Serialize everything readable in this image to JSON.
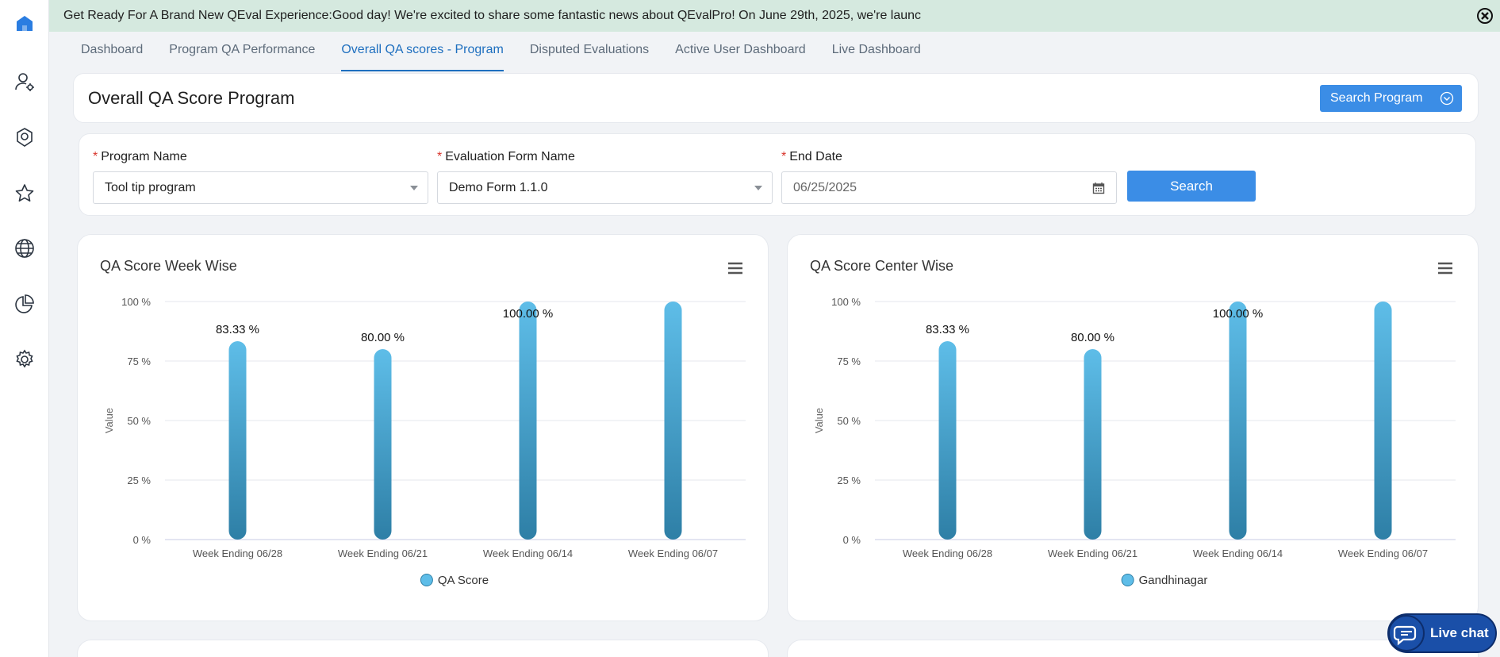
{
  "colors": {
    "accent": "#3b8de6",
    "tab_active": "#1e6fbf",
    "banner_bg": "#d5e9df",
    "bar_top": "#5ebde8",
    "bar_bottom": "#2e7fa6"
  },
  "sidebar": {
    "items": [
      {
        "icon": "home-icon"
      },
      {
        "icon": "user-settings-icon"
      },
      {
        "icon": "badge-icon"
      },
      {
        "icon": "star-icon"
      },
      {
        "icon": "globe-icon"
      },
      {
        "icon": "pie-chart-icon"
      },
      {
        "icon": "gear-icon"
      }
    ]
  },
  "announcement": {
    "text": "Get Ready For A Brand New QEval Experience:Good day! We're excited to share some fantastic news about QEvalPro! On June 29th, 2025, we're launc"
  },
  "tabs": [
    {
      "label": "Dashboard",
      "active": false
    },
    {
      "label": "Program QA Performance",
      "active": false
    },
    {
      "label": "Overall QA scores - Program",
      "active": true
    },
    {
      "label": "Disputed Evaluations",
      "active": false
    },
    {
      "label": "Active User Dashboard",
      "active": false
    },
    {
      "label": "Live Dashboard",
      "active": false
    }
  ],
  "header": {
    "title": "Overall QA Score Program",
    "search_program_label": "Search Program"
  },
  "filters": {
    "required_mark": "*",
    "program_label": "Program Name",
    "program_value": "Tool tip program",
    "form_label": "Evaluation Form Name",
    "form_value": "Demo Form 1.1.0",
    "end_date_label": "End Date",
    "end_date_value": "06/25/2025",
    "search_label": "Search"
  },
  "chart_data": [
    {
      "type": "bar",
      "title": "QA Score Week Wise",
      "ylabel": "Value",
      "xlabel": "",
      "categories": [
        "Week Ending 06/28",
        "Week Ending 06/21",
        "Week Ending 06/14",
        "Week Ending 06/07"
      ],
      "series": [
        {
          "name": "QA Score",
          "values": [
            83.33,
            80.0,
            100.0,
            100.0
          ]
        }
      ],
      "data_labels": [
        "83.33 %",
        "80.00 %",
        "100.00 %",
        ""
      ],
      "y_ticks": [
        "0 %",
        "25 %",
        "50 %",
        "75 %",
        "100 %"
      ],
      "ylim": [
        0,
        100
      ],
      "grid": true,
      "legend_position": "bottom-center"
    },
    {
      "type": "bar",
      "title": "QA Score Center Wise",
      "ylabel": "Value",
      "xlabel": "",
      "categories": [
        "Week Ending 06/28",
        "Week Ending 06/21",
        "Week Ending 06/14",
        "Week Ending 06/07"
      ],
      "series": [
        {
          "name": "Gandhinagar",
          "values": [
            83.33,
            80.0,
            100.0,
            100.0
          ]
        }
      ],
      "data_labels": [
        "83.33 %",
        "80.00 %",
        "100.00 %",
        ""
      ],
      "y_ticks": [
        "0 %",
        "25 %",
        "50 %",
        "75 %",
        "100 %"
      ],
      "ylim": [
        0,
        100
      ],
      "grid": true,
      "legend_position": "bottom-center"
    }
  ],
  "livechat": {
    "label": "Live chat"
  }
}
